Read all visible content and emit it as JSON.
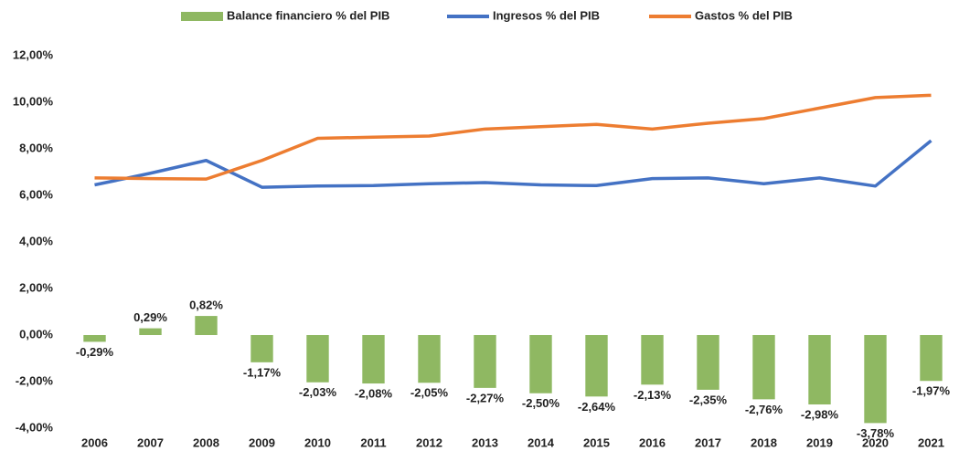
{
  "chart_data": {
    "type": "combo",
    "categories": [
      "2006",
      "2007",
      "2008",
      "2009",
      "2010",
      "2011",
      "2012",
      "2013",
      "2014",
      "2015",
      "2016",
      "2017",
      "2018",
      "2019",
      "2020",
      "2021"
    ],
    "series": [
      {
        "name": "Balance financiero % del PIB",
        "type": "bar",
        "color": "#8fb862",
        "values": [
          -0.29,
          0.29,
          0.82,
          -1.17,
          -2.03,
          -2.08,
          -2.05,
          -2.27,
          -2.5,
          -2.64,
          -2.13,
          -2.35,
          -2.76,
          -2.98,
          -3.78,
          -1.97
        ],
        "value_labels": [
          "-0,29%",
          "0,29%",
          "0,82%",
          "-1,17%",
          "-2,03%",
          "-2,08%",
          "-2,05%",
          "-2,27%",
          "-2,50%",
          "-2,64%",
          "-2,13%",
          "-2,35%",
          "-2,76%",
          "-2,98%",
          "-3,78%",
          "-1,97%"
        ]
      },
      {
        "name": "Ingresos % del PIB",
        "type": "line",
        "color": "#4472c4",
        "values": [
          6.45,
          6.95,
          7.5,
          6.35,
          6.4,
          6.42,
          6.5,
          6.55,
          6.45,
          6.42,
          6.72,
          6.75,
          6.5,
          6.75,
          6.4,
          8.35
        ]
      },
      {
        "name": "Gastos % del PIB",
        "type": "line",
        "color": "#ed7d31",
        "values": [
          6.75,
          6.72,
          6.7,
          7.5,
          8.45,
          8.5,
          8.55,
          8.85,
          8.95,
          9.05,
          8.85,
          9.1,
          9.3,
          9.75,
          10.2,
          10.3
        ]
      }
    ],
    "ylim": [
      -4,
      12
    ],
    "yticks": [
      {
        "value": -4,
        "label": "-4,00%"
      },
      {
        "value": -2,
        "label": "-2,00%"
      },
      {
        "value": 0,
        "label": "0,00%"
      },
      {
        "value": 2,
        "label": "2,00%"
      },
      {
        "value": 4,
        "label": "4,00%"
      },
      {
        "value": 6,
        "label": "6,00%"
      },
      {
        "value": 8,
        "label": "8,00%"
      },
      {
        "value": 10,
        "label": "10,00%"
      },
      {
        "value": 12,
        "label": "12,00%"
      }
    ],
    "legend": "top"
  }
}
